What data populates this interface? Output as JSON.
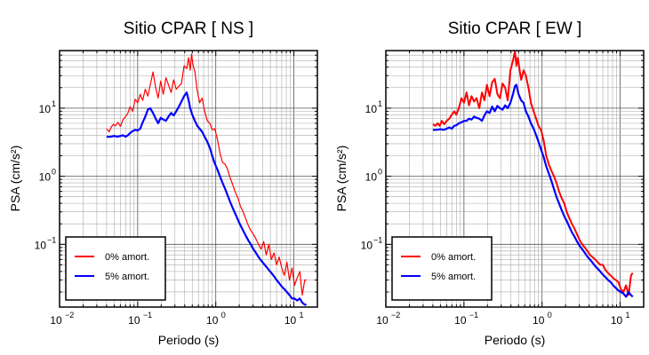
{
  "chart_data": [
    {
      "type": "line",
      "title": "Sitio CPAR [ NS ]",
      "xlabel": "Periodo (s)",
      "ylabel": "PSA (cm/s²)",
      "xscale": "log",
      "yscale": "log",
      "xlim": [
        0.01,
        20
      ],
      "ylim": [
        0.012,
        70
      ],
      "grid": true,
      "legend_position": "bottom-left",
      "x_ticks": [
        {
          "base": "10",
          "exp": "−2"
        },
        {
          "base": "10",
          "exp": "−1"
        },
        {
          "base": "10",
          "exp": "0"
        },
        {
          "base": "10",
          "exp": "1"
        }
      ],
      "y_ticks": [
        {
          "base": "10",
          "exp": "−1"
        },
        {
          "base": "10",
          "exp": "0"
        },
        {
          "base": "10",
          "exp": "1"
        }
      ],
      "series": [
        {
          "name": "0% amort.",
          "color": "#ff0000",
          "stroke_width": 1.2,
          "x": [
            0.04,
            0.043,
            0.046,
            0.049,
            0.052,
            0.056,
            0.06,
            0.065,
            0.07,
            0.075,
            0.08,
            0.086,
            0.093,
            0.1,
            0.108,
            0.116,
            0.125,
            0.135,
            0.145,
            0.157,
            0.17,
            0.183,
            0.197,
            0.213,
            0.23,
            0.248,
            0.268,
            0.289,
            0.312,
            0.337,
            0.364,
            0.393,
            0.424,
            0.45,
            0.47,
            0.49,
            0.51,
            0.54,
            0.58,
            0.62,
            0.67,
            0.72,
            0.78,
            0.84,
            0.9,
            0.97,
            1.05,
            1.13,
            1.22,
            1.32,
            1.42,
            1.53,
            1.65,
            1.78,
            1.92,
            2.07,
            2.24,
            2.41,
            2.6,
            2.81,
            3.03,
            3.27,
            3.53,
            3.81,
            4.11,
            4.43,
            4.78,
            5.16,
            5.57,
            6.0,
            6.48,
            6.99,
            7.54,
            8.14,
            8.78,
            9.47,
            10.2,
            11.0,
            11.9,
            12.8,
            13.8,
            14.5
          ],
          "y": [
            5.0,
            4.5,
            5.3,
            5.8,
            5.5,
            6.2,
            5.4,
            6.8,
            7.5,
            8.5,
            10.5,
            9.0,
            13.5,
            12.0,
            16.0,
            13.0,
            19.0,
            15.0,
            22.0,
            34.0,
            20.0,
            14.0,
            25.0,
            16.0,
            28.0,
            22.0,
            17.0,
            26.0,
            19.0,
            21.0,
            23.0,
            42.0,
            38.0,
            55.0,
            36.0,
            62.0,
            44.0,
            34.0,
            18.0,
            12.0,
            14.0,
            9.0,
            6.5,
            6.0,
            4.8,
            5.0,
            3.5,
            2.2,
            1.6,
            1.5,
            1.25,
            0.95,
            0.75,
            0.58,
            0.48,
            0.36,
            0.3,
            0.24,
            0.19,
            0.16,
            0.14,
            0.12,
            0.1,
            0.085,
            0.11,
            0.07,
            0.1,
            0.06,
            0.075,
            0.05,
            0.065,
            0.045,
            0.035,
            0.055,
            0.03,
            0.045,
            0.025,
            0.032,
            0.04,
            0.018,
            0.03,
            0.03
          ]
        },
        {
          "name": "5% amort.",
          "color": "#0000ff",
          "stroke_width": 2.2,
          "x": [
            0.04,
            0.045,
            0.05,
            0.055,
            0.06,
            0.065,
            0.07,
            0.075,
            0.08,
            0.086,
            0.093,
            0.1,
            0.108,
            0.116,
            0.125,
            0.135,
            0.145,
            0.157,
            0.17,
            0.183,
            0.197,
            0.213,
            0.23,
            0.248,
            0.268,
            0.289,
            0.312,
            0.337,
            0.364,
            0.393,
            0.424,
            0.45,
            0.47,
            0.5,
            0.54,
            0.58,
            0.62,
            0.67,
            0.72,
            0.78,
            0.84,
            0.9,
            0.97,
            1.05,
            1.13,
            1.22,
            1.32,
            1.42,
            1.53,
            1.65,
            1.78,
            1.92,
            2.07,
            2.24,
            2.41,
            2.6,
            2.81,
            3.03,
            3.27,
            3.53,
            3.81,
            4.11,
            4.43,
            4.78,
            5.16,
            5.57,
            6.0,
            6.48,
            6.99,
            7.54,
            8.14,
            8.78,
            9.47,
            10.2,
            11.0,
            11.9,
            12.8,
            13.8,
            14.5
          ],
          "y": [
            3.8,
            3.8,
            3.9,
            3.8,
            3.9,
            4.0,
            3.8,
            4.0,
            4.3,
            4.6,
            4.8,
            4.7,
            5.0,
            6.2,
            7.5,
            9.5,
            10.0,
            8.5,
            7.0,
            6.0,
            7.2,
            6.8,
            6.5,
            7.5,
            8.5,
            7.8,
            9.0,
            10.5,
            12.5,
            15.0,
            17.0,
            13.0,
            10.0,
            8.0,
            6.5,
            5.5,
            5.0,
            4.5,
            3.8,
            3.2,
            2.6,
            2.0,
            1.55,
            1.25,
            1.0,
            0.8,
            0.65,
            0.52,
            0.42,
            0.34,
            0.28,
            0.23,
            0.19,
            0.16,
            0.135,
            0.115,
            0.1,
            0.085,
            0.075,
            0.065,
            0.058,
            0.052,
            0.047,
            0.042,
            0.038,
            0.034,
            0.03,
            0.027,
            0.024,
            0.022,
            0.02,
            0.018,
            0.016,
            0.016,
            0.015,
            0.016,
            0.014,
            0.013,
            0.013
          ]
        }
      ]
    },
    {
      "type": "line",
      "title": "Sitio CPAR [ EW ]",
      "xlabel": "Periodo (s)",
      "ylabel": "PSA (cm/s²)",
      "xscale": "log",
      "yscale": "log",
      "xlim": [
        0.01,
        20
      ],
      "ylim": [
        0.012,
        70
      ],
      "grid": true,
      "legend_position": "bottom-left",
      "x_ticks": [
        {
          "base": "10",
          "exp": "−2"
        },
        {
          "base": "10",
          "exp": "−1"
        },
        {
          "base": "10",
          "exp": "0"
        },
        {
          "base": "10",
          "exp": "1"
        }
      ],
      "y_ticks": [
        {
          "base": "10",
          "exp": "−1"
        },
        {
          "base": "10",
          "exp": "0"
        },
        {
          "base": "10",
          "exp": "1"
        }
      ],
      "series": [
        {
          "name": "0% amort.",
          "color": "#ff0000",
          "stroke_width": 2.0,
          "x": [
            0.04,
            0.043,
            0.046,
            0.049,
            0.052,
            0.056,
            0.06,
            0.065,
            0.07,
            0.075,
            0.08,
            0.086,
            0.093,
            0.1,
            0.108,
            0.116,
            0.125,
            0.135,
            0.145,
            0.157,
            0.17,
            0.183,
            0.197,
            0.213,
            0.23,
            0.248,
            0.268,
            0.289,
            0.312,
            0.337,
            0.364,
            0.393,
            0.424,
            0.45,
            0.47,
            0.49,
            0.51,
            0.54,
            0.58,
            0.62,
            0.67,
            0.72,
            0.78,
            0.84,
            0.9,
            0.97,
            1.05,
            1.13,
            1.22,
            1.32,
            1.42,
            1.53,
            1.65,
            1.78,
            1.92,
            2.07,
            2.24,
            2.41,
            2.6,
            2.81,
            3.03,
            3.27,
            3.53,
            3.81,
            4.11,
            4.43,
            4.78,
            5.16,
            5.57,
            6.0,
            6.48,
            6.99,
            7.54,
            8.14,
            8.78,
            9.47,
            10.2,
            11.0,
            11.9,
            12.8,
            13.8,
            14.5
          ],
          "y": [
            5.8,
            5.5,
            6.0,
            5.5,
            6.5,
            5.8,
            6.5,
            7.0,
            8.0,
            9.0,
            8.0,
            10.0,
            14.0,
            12.0,
            17.0,
            11.0,
            15.0,
            12.5,
            14.0,
            10.0,
            17.0,
            13.0,
            22.0,
            15.0,
            24.0,
            27.0,
            16.0,
            14.0,
            23.0,
            20.0,
            13.0,
            36.0,
            50.0,
            68.0,
            42.0,
            55.0,
            40.0,
            26.0,
            36.0,
            30.0,
            20.0,
            12.0,
            9.0,
            7.0,
            5.5,
            4.8,
            3.3,
            2.0,
            1.5,
            1.2,
            1.0,
            0.8,
            0.6,
            0.48,
            0.4,
            0.3,
            0.24,
            0.2,
            0.17,
            0.14,
            0.115,
            0.1,
            0.09,
            0.08,
            0.07,
            0.065,
            0.06,
            0.055,
            0.05,
            0.05,
            0.042,
            0.038,
            0.035,
            0.032,
            0.03,
            0.028,
            0.022,
            0.02,
            0.025,
            0.018,
            0.035,
            0.038
          ]
        },
        {
          "name": "5% amort.",
          "color": "#0000ff",
          "stroke_width": 2.2,
          "x": [
            0.04,
            0.045,
            0.05,
            0.055,
            0.06,
            0.065,
            0.07,
            0.075,
            0.08,
            0.086,
            0.093,
            0.1,
            0.108,
            0.116,
            0.125,
            0.135,
            0.145,
            0.157,
            0.17,
            0.183,
            0.197,
            0.213,
            0.23,
            0.248,
            0.268,
            0.289,
            0.312,
            0.337,
            0.364,
            0.393,
            0.424,
            0.45,
            0.47,
            0.5,
            0.54,
            0.58,
            0.62,
            0.67,
            0.72,
            0.78,
            0.84,
            0.9,
            0.97,
            1.05,
            1.13,
            1.22,
            1.32,
            1.42,
            1.53,
            1.65,
            1.78,
            1.92,
            2.07,
            2.24,
            2.41,
            2.6,
            2.81,
            3.03,
            3.27,
            3.53,
            3.81,
            4.11,
            4.43,
            4.78,
            5.16,
            5.57,
            6.0,
            6.48,
            6.99,
            7.54,
            8.14,
            8.78,
            9.47,
            10.2,
            11.0,
            11.9,
            12.8,
            13.8,
            14.5
          ],
          "y": [
            4.8,
            4.8,
            4.9,
            4.8,
            5.0,
            5.2,
            5.0,
            5.5,
            5.6,
            6.0,
            6.2,
            6.5,
            6.5,
            7.0,
            6.8,
            7.5,
            7.2,
            7.0,
            6.5,
            7.8,
            9.0,
            8.5,
            10.5,
            9.0,
            10.8,
            10.0,
            9.5,
            11.0,
            10.0,
            12.0,
            16.0,
            21.0,
            22.0,
            16.0,
            13.0,
            12.0,
            9.0,
            7.5,
            6.0,
            5.0,
            4.0,
            3.2,
            2.5,
            1.9,
            1.4,
            1.1,
            0.85,
            0.65,
            0.5,
            0.4,
            0.32,
            0.26,
            0.22,
            0.18,
            0.15,
            0.13,
            0.11,
            0.095,
            0.085,
            0.075,
            0.066,
            0.06,
            0.054,
            0.048,
            0.044,
            0.04,
            0.036,
            0.033,
            0.03,
            0.028,
            0.025,
            0.023,
            0.021,
            0.02,
            0.019,
            0.017,
            0.02,
            0.018,
            0.017
          ]
        }
      ]
    }
  ]
}
